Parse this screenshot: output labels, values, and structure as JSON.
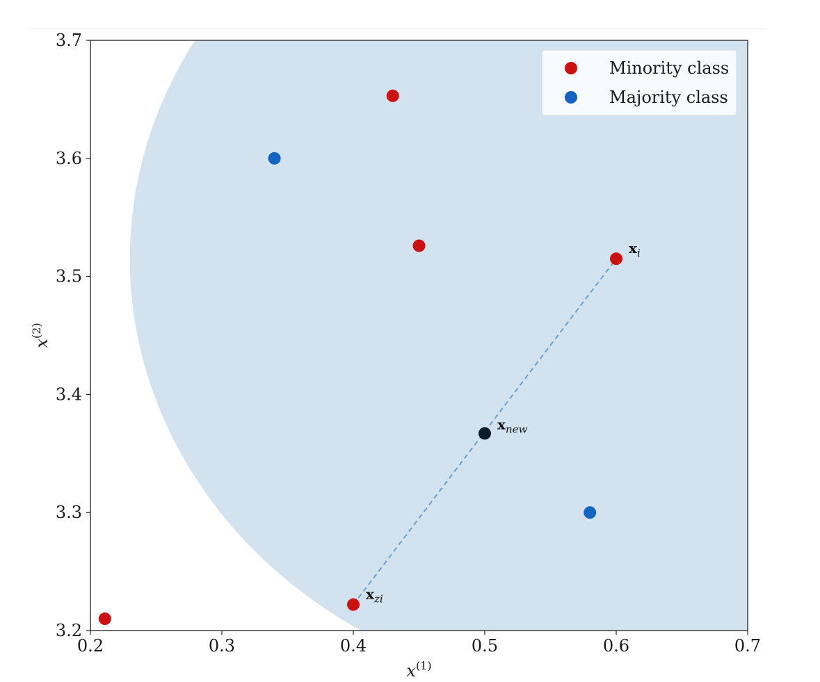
{
  "chart_data": {
    "type": "scatter",
    "title": "",
    "xlabel": "x",
    "xlabel_sup": "(1)",
    "ylabel": "x",
    "ylabel_sup": "(2)",
    "xlim": [
      0.2,
      0.7
    ],
    "ylim": [
      3.2,
      3.7
    ],
    "xticks": [
      "0.2",
      "0.3",
      "0.4",
      "0.5",
      "0.6",
      "0.7"
    ],
    "yticks": [
      "3.2",
      "3.3",
      "3.4",
      "3.5",
      "3.6",
      "3.7"
    ],
    "grid": false,
    "legend_position": "top-right",
    "neighborhood_region": {
      "center": [
        0.6,
        3.515
      ],
      "radius": 0.37,
      "color": "#d2e3ef"
    },
    "series": [
      {
        "name": "Minority class",
        "color": "#cc1111",
        "points": [
          [
            0.211,
            3.21
          ],
          [
            0.4,
            3.222
          ],
          [
            0.43,
            3.653
          ],
          [
            0.45,
            3.526
          ],
          [
            0.6,
            3.515
          ]
        ]
      },
      {
        "name": "Majority class",
        "color": "#1565c0",
        "points": [
          [
            0.34,
            3.6
          ],
          [
            0.58,
            3.3
          ]
        ]
      }
    ],
    "synthetic_point": {
      "x": 0.5,
      "y": 3.367,
      "color": "#0d1b2a"
    },
    "interpolation_line": {
      "from": [
        0.4,
        3.222
      ],
      "to": [
        0.6,
        3.515
      ],
      "color": "#6a9fd0",
      "style": "dashed"
    },
    "annotations": [
      {
        "main": "x",
        "sub": "i",
        "x": 0.6,
        "y": 3.515
      },
      {
        "main": "x",
        "sub": "new",
        "x": 0.5,
        "y": 3.367
      },
      {
        "main": "x",
        "sub": "zi",
        "x": 0.4,
        "y": 3.222
      }
    ]
  }
}
